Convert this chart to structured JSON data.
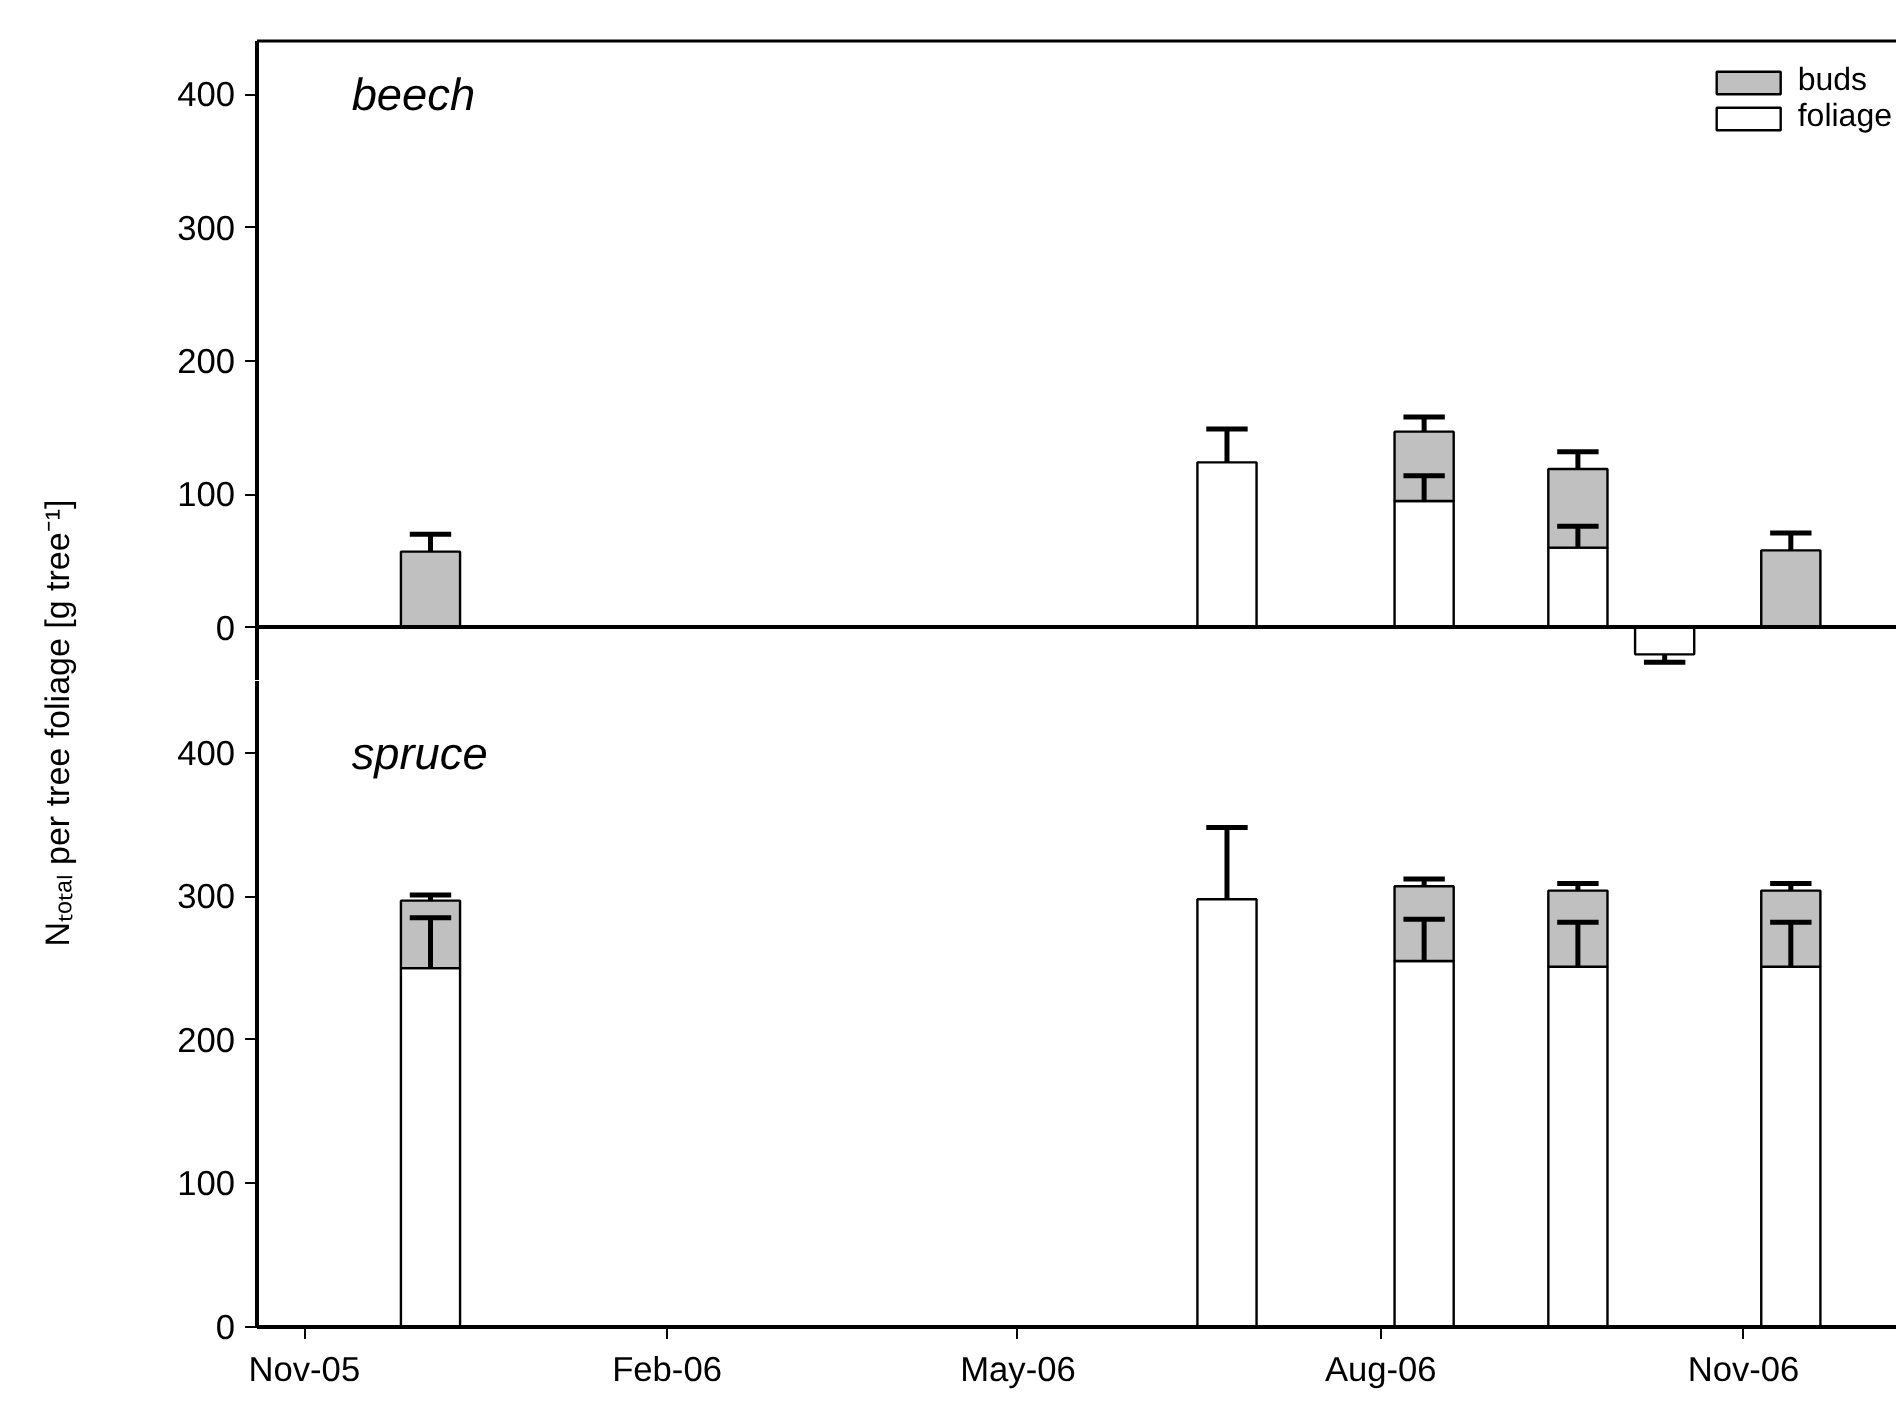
{
  "chart_data": [
    {
      "type": "bar",
      "title": "beech",
      "ylabel": "Nₜₒₜₐₗ per tree foliage [g tree⁻¹]",
      "stacked": true,
      "legend": "top right",
      "tick_labels": "y",
      "x": [
        "2005-12-03",
        "2006-06-23",
        "2006-08-12",
        "2006-09-20",
        "2006-10-12",
        "2006-11-13"
      ],
      "series": [
        {
          "name": "foliage",
          "color": "#ffffff",
          "values": [
            null,
            124,
            95,
            60,
            -20,
            null
          ],
          "errors": [
            null,
            [
              124,
              149
            ],
            [
              95,
              114
            ],
            [
              60,
              76
            ],
            [
              -26,
              -20
            ],
            null
          ]
        },
        {
          "name": "buds",
          "color": "#c0c0c0",
          "values": [
            57,
            null,
            52,
            59,
            null,
            58
          ],
          "errors": [
            [
              57,
              70
            ],
            null,
            [
              147,
              158
            ],
            [
              119,
              132
            ],
            null,
            [
              58,
              71
            ]
          ]
        }
      ],
      "xlim": [
        "2005-10-20",
        "2006-12-15"
      ],
      "ylim": [
        -40,
        440
      ],
      "yticks": [
        0,
        100,
        200,
        300,
        400
      ]
    },
    {
      "type": "bar",
      "title": "spruce",
      "stacked": true,
      "x": [
        "2005-12-03",
        "2006-06-23",
        "2006-08-12",
        "2006-09-20",
        "2006-10-12",
        "2006-11-13"
      ],
      "series": [
        {
          "color": "#ffffff",
          "values": [
            250,
            298,
            255,
            251,
            null,
            251
          ],
          "errors": [
            [
              250,
              285
            ],
            [
              298,
              348
            ],
            [
              255,
              284
            ],
            [
              251,
              282
            ],
            null,
            [
              251,
              282
            ]
          ]
        },
        {
          "color": "#c0c0c0",
          "values": [
            47,
            null,
            52,
            53,
            null,
            53
          ],
          "errors": [
            [
              297,
              301
            ],
            null,
            [
              307,
              312
            ],
            [
              304,
              309
            ],
            null,
            [
              304,
              309
            ]
          ]
        }
      ],
      "xlim": [
        "2005-10-20",
        "2006-12-15"
      ],
      "xticks": [
        {
          "value": "2005-11-01",
          "label": "Nov-05"
        },
        {
          "value": "2006-02-01",
          "label": "Feb-06"
        },
        {
          "value": "2006-05-01",
          "label": "May-06"
        },
        {
          "value": "2006-08-01",
          "label": "Aug-06"
        },
        {
          "value": "2006-11-01",
          "label": "Nov-06"
        }
      ],
      "ylim": [
        0,
        450
      ],
      "yticks": [
        0,
        100,
        200,
        300,
        400
      ]
    }
  ]
}
